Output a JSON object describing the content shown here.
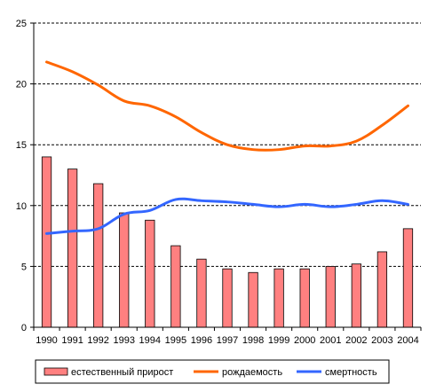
{
  "chart_data": {
    "type": "bar",
    "title": "",
    "xlabel": "",
    "ylabel": "",
    "categories": [
      "1990",
      "1991",
      "1992",
      "1993",
      "1994",
      "1995",
      "1996",
      "1997",
      "1998",
      "1999",
      "2000",
      "2001",
      "2002",
      "2003",
      "2004"
    ],
    "ylim": [
      0,
      25
    ],
    "yticks": [
      "0",
      "5",
      "10",
      "15",
      "20",
      "25"
    ],
    "ytick_values": [
      0,
      5,
      10,
      15,
      20,
      25
    ],
    "grid": true,
    "legend_position": "bottom",
    "series": [
      {
        "name": "естественный прирост",
        "type": "bar",
        "color": "#ff8080",
        "values": [
          14.0,
          13.0,
          11.8,
          9.4,
          8.8,
          6.7,
          5.6,
          4.8,
          4.5,
          4.8,
          4.8,
          5.0,
          5.2,
          6.2,
          8.1
        ]
      },
      {
        "name": "рождаемость",
        "type": "line",
        "color": "#ff6600",
        "values": [
          21.8,
          21.0,
          19.9,
          18.6,
          18.2,
          17.3,
          16.0,
          15.0,
          14.6,
          14.6,
          14.9,
          14.9,
          15.3,
          16.6,
          18.2
        ]
      },
      {
        "name": "смертность",
        "type": "line",
        "color": "#3366ff",
        "values": [
          7.7,
          7.9,
          8.1,
          9.3,
          9.6,
          10.5,
          10.4,
          10.3,
          10.1,
          9.9,
          10.1,
          9.9,
          10.1,
          10.4,
          10.1
        ]
      }
    ]
  }
}
